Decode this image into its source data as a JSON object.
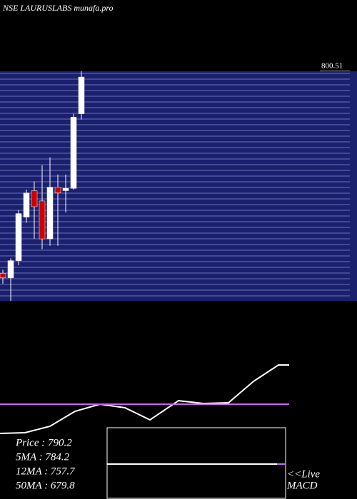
{
  "chart_data": [
    {
      "type": "candlestick",
      "title": "NSE LAURUSLABS munafa.pro",
      "candles": [
        {
          "open": 624,
          "high": 627,
          "low": 615,
          "close": 620
        },
        {
          "open": 620,
          "high": 637,
          "low": 600,
          "close": 635
        },
        {
          "open": 635,
          "high": 679,
          "low": 631,
          "close": 676
        },
        {
          "open": 673,
          "high": 697,
          "low": 668,
          "close": 694
        },
        {
          "open": 696,
          "high": 704,
          "low": 654,
          "close": 682
        },
        {
          "open": 687,
          "high": 718,
          "low": 645,
          "close": 654
        },
        {
          "open": 654,
          "high": 725,
          "low": 648,
          "close": 699
        },
        {
          "open": 699,
          "high": 710,
          "low": 648,
          "close": 694
        },
        {
          "open": 696,
          "high": 710,
          "low": 677,
          "close": 698
        },
        {
          "open": 698,
          "high": 763,
          "low": 697,
          "close": 760
        },
        {
          "open": 763,
          "high": 800,
          "low": 758,
          "close": 795
        }
      ],
      "up_color": "#ffffff",
      "down_color": "#cc0000",
      "ylim": [
        600,
        800
      ],
      "yticks": [
        800.51
      ]
    },
    {
      "type": "line",
      "x": [
        0,
        35,
        70,
        105,
        140,
        175,
        210,
        250,
        285,
        320,
        355,
        390,
        405
      ],
      "series": [
        {
          "color": "#ffffff",
          "values": [
            12,
            13,
            22,
            43,
            53,
            48,
            31,
            58,
            54,
            55,
            85,
            108,
            108
          ]
        },
        {
          "color": "#cc66ff",
          "values": [
            53,
            53,
            53,
            53,
            53,
            53,
            53,
            53,
            53,
            53,
            53,
            53,
            53
          ]
        }
      ],
      "xlim": [
        0,
        500
      ],
      "ylim": [
        0,
        120
      ]
    },
    {
      "type": "text",
      "rows": [
        "Price  : 790.2",
        "5MA  : 784.2",
        "12MA : 757.7",
        "50MA : 679.8"
      ]
    },
    {
      "type": "macd",
      "live": "<<Live",
      "label": "MACD"
    }
  ]
}
